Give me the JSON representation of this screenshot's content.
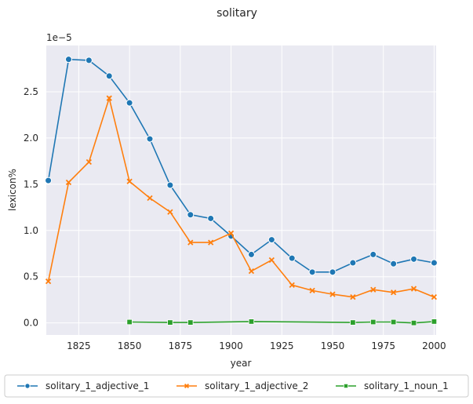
{
  "chart_data": {
    "type": "line",
    "title": "solitary",
    "xlabel": "year",
    "ylabel": "lexicon%",
    "y_scale_label": "1e−5",
    "xlim": [
      1809,
      2001
    ],
    "ylim": [
      -0.13,
      3.0
    ],
    "x_ticks": [
      1825,
      1850,
      1875,
      1900,
      1925,
      1950,
      1975,
      2000
    ],
    "y_ticks": [
      0.0,
      0.5,
      1.0,
      1.5,
      2.0,
      2.5
    ],
    "y_tick_labels": [
      "0.0",
      "0.5",
      "1.0",
      "1.5",
      "2.0",
      "2.5"
    ],
    "grid": true,
    "legend_position": "bottom",
    "series": [
      {
        "name": "solitary_1_adjective_1",
        "color": "#1f77b4",
        "marker": "circle",
        "x": [
          1810,
          1820,
          1830,
          1840,
          1850,
          1860,
          1870,
          1880,
          1890,
          1900,
          1910,
          1920,
          1930,
          1940,
          1950,
          1960,
          1970,
          1980,
          1990,
          2000
        ],
        "y": [
          1.54,
          2.85,
          2.84,
          2.67,
          2.38,
          1.99,
          1.49,
          1.17,
          1.13,
          0.94,
          0.74,
          0.9,
          0.7,
          0.55,
          0.55,
          0.65,
          0.74,
          0.64,
          0.69,
          0.65
        ]
      },
      {
        "name": "solitary_1_adjective_2",
        "color": "#ff7f0e",
        "marker": "x",
        "x": [
          1810,
          1820,
          1830,
          1840,
          1850,
          1860,
          1870,
          1880,
          1890,
          1900,
          1910,
          1920,
          1930,
          1940,
          1950,
          1960,
          1970,
          1980,
          1990,
          2000
        ],
        "y": [
          0.45,
          1.52,
          1.74,
          2.43,
          1.53,
          1.35,
          1.2,
          0.87,
          0.87,
          0.97,
          0.56,
          0.68,
          0.41,
          0.35,
          0.31,
          0.28,
          0.36,
          0.33,
          0.37,
          0.28
        ]
      },
      {
        "name": "solitary_1_noun_1",
        "color": "#2ca02c",
        "marker": "square",
        "x": [
          1850,
          1870,
          1880,
          1910,
          1960,
          1970,
          1980,
          1990,
          2000
        ],
        "y": [
          0.01,
          0.005,
          0.005,
          0.015,
          0.005,
          0.01,
          0.01,
          0.0,
          0.015
        ]
      }
    ]
  }
}
